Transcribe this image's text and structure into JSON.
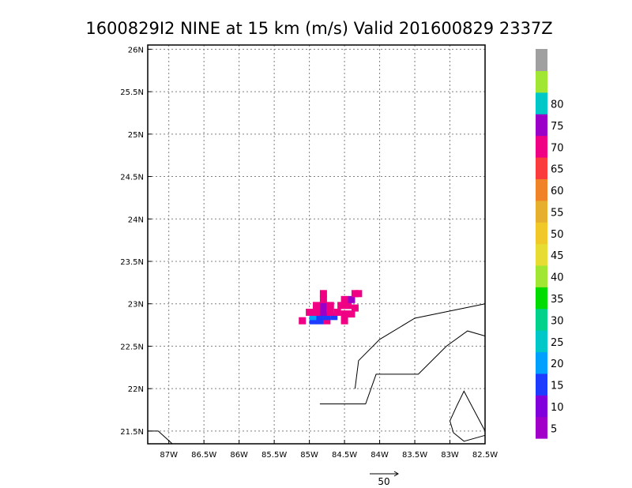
{
  "chart_data": {
    "type": "heatmap",
    "title": "1600829I2 NINE at 15 km (m/s) Valid 201600829 2337Z",
    "x_ticks": [
      -87,
      -86.5,
      -86,
      -85.5,
      -85,
      -84.5,
      -84,
      -83.5,
      -83,
      -82.5
    ],
    "x_tick_labels": [
      "87W",
      "86.5W",
      "86W",
      "85.5W",
      "85W",
      "84.5W",
      "84W",
      "83.5W",
      "83W",
      "82.5W"
    ],
    "y_ticks": [
      21.5,
      22,
      22.5,
      23,
      23.5,
      24,
      24.5,
      25,
      25.5,
      26
    ],
    "y_tick_labels": [
      "21.5N",
      "22N",
      "22.5N",
      "23N",
      "23.5N",
      "24N",
      "24.5N",
      "25N",
      "25.5N",
      "26N"
    ],
    "xlim": [
      -87.3,
      -82.5
    ],
    "ylim": [
      21.35,
      26.05
    ],
    "grid": true,
    "colorbar": {
      "labels": [
        "5",
        "10",
        "15",
        "20",
        "25",
        "30",
        "35",
        "40",
        "45",
        "50",
        "55",
        "60",
        "65",
        "70",
        "75",
        "80"
      ],
      "colors": [
        "#a000c8",
        "#8200dc",
        "#1e3cff",
        "#00a0ff",
        "#00c8c8",
        "#00d28c",
        "#00dc00",
        "#a0e632",
        "#e6dc32",
        "#f0c828",
        "#e6af2d",
        "#f08228",
        "#fa3c3c",
        "#f00082",
        "#9b00c8",
        "#00c8c8",
        "#a0e632",
        "#a0a0a0"
      ]
    },
    "vector_reference": "50",
    "cells": [
      {
        "lon": -84.95,
        "lat": 22.8,
        "v": 10
      },
      {
        "lon": -84.85,
        "lat": 22.8,
        "v": 10
      },
      {
        "lon": -84.75,
        "lat": 22.8,
        "v": 65
      },
      {
        "lon": -84.95,
        "lat": 22.85,
        "v": 15
      },
      {
        "lon": -84.85,
        "lat": 22.85,
        "v": 10
      },
      {
        "lon": -84.75,
        "lat": 22.85,
        "v": 10
      },
      {
        "lon": -84.65,
        "lat": 22.85,
        "v": 10
      },
      {
        "lon": -85.0,
        "lat": 22.9,
        "v": 65
      },
      {
        "lon": -84.9,
        "lat": 22.9,
        "v": 65
      },
      {
        "lon": -84.8,
        "lat": 22.9,
        "v": 70
      },
      {
        "lon": -84.7,
        "lat": 22.9,
        "v": 65
      },
      {
        "lon": -84.6,
        "lat": 22.9,
        "v": 65
      },
      {
        "lon": -84.5,
        "lat": 22.88,
        "v": 65
      },
      {
        "lon": -84.4,
        "lat": 22.88,
        "v": 65
      },
      {
        "lon": -84.9,
        "lat": 22.98,
        "v": 65
      },
      {
        "lon": -84.8,
        "lat": 22.98,
        "v": 70
      },
      {
        "lon": -84.7,
        "lat": 22.98,
        "v": 65
      },
      {
        "lon": -84.55,
        "lat": 22.98,
        "v": 65
      },
      {
        "lon": -84.45,
        "lat": 22.98,
        "v": 65
      },
      {
        "lon": -84.35,
        "lat": 22.95,
        "v": 65
      },
      {
        "lon": -84.8,
        "lat": 23.05,
        "v": 65
      },
      {
        "lon": -84.5,
        "lat": 23.05,
        "v": 65
      },
      {
        "lon": -84.4,
        "lat": 23.05,
        "v": 70
      },
      {
        "lon": -84.8,
        "lat": 23.12,
        "v": 65
      },
      {
        "lon": -84.35,
        "lat": 23.12,
        "v": 65
      },
      {
        "lon": -84.3,
        "lat": 23.12,
        "v": 65
      },
      {
        "lon": -85.1,
        "lat": 22.8,
        "v": 65
      },
      {
        "lon": -84.5,
        "lat": 22.8,
        "v": 65
      }
    ],
    "coastlines": [
      [
        [
          -87.3,
          21.5
        ],
        [
          -87.15,
          21.5
        ],
        [
          -86.95,
          21.35
        ]
      ],
      [
        [
          -84.85,
          21.82
        ],
        [
          -84.2,
          21.82
        ],
        [
          -84.05,
          22.17
        ],
        [
          -83.45,
          22.17
        ],
        [
          -83.05,
          22.5
        ],
        [
          -82.75,
          22.68
        ],
        [
          -82.5,
          22.62
        ]
      ],
      [
        [
          -84.35,
          22.0
        ],
        [
          -84.3,
          22.33
        ],
        [
          -84.0,
          22.58
        ],
        [
          -83.5,
          22.83
        ],
        [
          -82.5,
          23.0
        ]
      ],
      [
        [
          -82.9,
          21.8
        ],
        [
          -83.0,
          21.62
        ],
        [
          -82.95,
          21.48
        ],
        [
          -82.8,
          21.38
        ],
        [
          -82.5,
          21.45
        ]
      ],
      [
        [
          -82.9,
          21.8
        ],
        [
          -82.8,
          21.97
        ],
        [
          -82.5,
          21.5
        ]
      ]
    ]
  }
}
